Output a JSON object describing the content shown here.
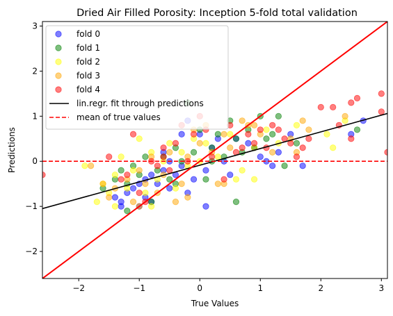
{
  "chart_data": {
    "type": "scatter",
    "title": "Dried Air Filled Porosity: Inception 5-fold total validation",
    "xlabel": "True Values",
    "ylabel": "Predictions",
    "xlim": [
      -2.6,
      3.1
    ],
    "ylim": [
      -2.6,
      3.1
    ],
    "xticks": [
      -2,
      -1,
      0,
      1,
      2,
      3
    ],
    "yticks": [
      -2,
      -1,
      0,
      1,
      2,
      3
    ],
    "xtick_labels": [
      "−2",
      "−1",
      "0",
      "1",
      "2",
      "3"
    ],
    "ytick_labels": [
      "−2",
      "−1",
      "0",
      "1",
      "2",
      "3"
    ],
    "grid": false,
    "legend_position": "top-left",
    "series": [
      {
        "name": "fold 0",
        "color": "#0000ff",
        "points": [
          [
            -1.3,
            -1.0
          ],
          [
            -1.3,
            -0.9
          ],
          [
            -1.2,
            -0.7
          ],
          [
            -1.1,
            -0.6
          ],
          [
            -1.0,
            -0.5
          ],
          [
            -1.0,
            -1.0
          ],
          [
            -0.9,
            -0.8
          ],
          [
            -0.9,
            -0.4
          ],
          [
            -0.8,
            -0.3
          ],
          [
            -0.7,
            -0.5
          ],
          [
            -0.6,
            -0.2
          ],
          [
            -0.6,
            0.2
          ],
          [
            -0.5,
            -0.6
          ],
          [
            -0.5,
            0.0
          ],
          [
            -0.4,
            -0.3
          ],
          [
            -0.3,
            -0.1
          ],
          [
            -0.3,
            0.6
          ],
          [
            -0.2,
            0.9
          ],
          [
            -0.1,
            -0.4
          ],
          [
            0.0,
            0.6
          ],
          [
            0.1,
            -0.2
          ],
          [
            0.2,
            0.3
          ],
          [
            0.3,
            0.5
          ],
          [
            0.5,
            -0.3
          ],
          [
            0.6,
            0.5
          ],
          [
            0.8,
            0.4
          ],
          [
            1.0,
            0.1
          ],
          [
            1.2,
            -0.1
          ],
          [
            1.3,
            0.2
          ],
          [
            1.5,
            0.6
          ],
          [
            1.7,
            -0.1
          ],
          [
            2.5,
            0.6
          ],
          [
            2.7,
            0.9
          ],
          [
            -1.4,
            -0.8
          ],
          [
            -0.8,
            -0.9
          ],
          [
            -0.2,
            -0.7
          ],
          [
            0.1,
            -1.0
          ],
          [
            0.4,
            0.0
          ],
          [
            0.9,
            0.3
          ],
          [
            1.1,
            0.0
          ]
        ]
      },
      {
        "name": "fold 1",
        "color": "#008000",
        "points": [
          [
            -1.6,
            -0.6
          ],
          [
            -1.4,
            -0.4
          ],
          [
            -1.3,
            -0.2
          ],
          [
            -1.2,
            -0.5
          ],
          [
            -1.1,
            -0.1
          ],
          [
            -1.0,
            -0.3
          ],
          [
            -0.9,
            0.1
          ],
          [
            -0.8,
            -0.9
          ],
          [
            -0.7,
            -0.2
          ],
          [
            -0.6,
            0.1
          ],
          [
            -0.5,
            -0.4
          ],
          [
            -0.4,
            0.3
          ],
          [
            -0.3,
            0.0
          ],
          [
            -0.2,
            1.3
          ],
          [
            -0.1,
            0.2
          ],
          [
            0.0,
            0.7
          ],
          [
            0.1,
            -0.4
          ],
          [
            0.2,
            0.3
          ],
          [
            0.3,
            0.6
          ],
          [
            0.4,
            0.1
          ],
          [
            0.5,
            0.9
          ],
          [
            0.6,
            0.5
          ],
          [
            0.7,
            0.2
          ],
          [
            0.8,
            0.7
          ],
          [
            0.9,
            0.3
          ],
          [
            1.0,
            1.0
          ],
          [
            1.1,
            0.5
          ],
          [
            1.3,
            1.0
          ],
          [
            1.4,
            -0.1
          ],
          [
            1.6,
            0.4
          ],
          [
            2.6,
            0.7
          ],
          [
            0.6,
            -0.9
          ],
          [
            -1.2,
            -1.1
          ],
          [
            -0.4,
            -0.5
          ],
          [
            0.2,
            0.0
          ],
          [
            1.2,
            0.6
          ]
        ]
      },
      {
        "name": "fold 2",
        "color": "#ffff00",
        "points": [
          [
            -1.9,
            -0.1
          ],
          [
            -1.7,
            -0.9
          ],
          [
            -1.6,
            -0.5
          ],
          [
            -1.5,
            -0.7
          ],
          [
            -1.4,
            -0.3
          ],
          [
            -1.3,
            0.1
          ],
          [
            -1.2,
            -0.6
          ],
          [
            -1.1,
            -0.2
          ],
          [
            -1.0,
            0.5
          ],
          [
            -0.9,
            -0.7
          ],
          [
            -0.8,
            0.2
          ],
          [
            -0.7,
            -0.4
          ],
          [
            -0.6,
            0.0
          ],
          [
            -0.5,
            0.4
          ],
          [
            -0.4,
            -0.6
          ],
          [
            -0.3,
            0.2
          ],
          [
            -0.2,
            -0.1
          ],
          [
            -0.1,
            0.5
          ],
          [
            0.0,
            0.0
          ],
          [
            0.1,
            0.4
          ],
          [
            0.3,
            0.1
          ],
          [
            0.5,
            0.6
          ],
          [
            0.7,
            -0.2
          ],
          [
            0.9,
            0.3
          ],
          [
            1.1,
            0.7
          ],
          [
            1.3,
            0.4
          ],
          [
            1.6,
            0.8
          ],
          [
            2.1,
            0.6
          ],
          [
            2.4,
            0.9
          ],
          [
            2.2,
            0.3
          ],
          [
            -1.4,
            -1.0
          ],
          [
            -0.8,
            -1.0
          ],
          [
            0.6,
            -0.4
          ],
          [
            0.9,
            -0.4
          ]
        ]
      },
      {
        "name": "fold 3",
        "color": "#ffa500",
        "points": [
          [
            -1.8,
            -0.1
          ],
          [
            -1.6,
            -0.5
          ],
          [
            -1.5,
            -0.8
          ],
          [
            -1.4,
            -0.6
          ],
          [
            -1.2,
            -0.4
          ],
          [
            -1.1,
            -0.9
          ],
          [
            -1.0,
            -0.2
          ],
          [
            -0.9,
            -0.5
          ],
          [
            -0.8,
            0.1
          ],
          [
            -0.7,
            -0.7
          ],
          [
            -0.6,
            -0.3
          ],
          [
            -0.5,
            0.2
          ],
          [
            -0.4,
            -0.9
          ],
          [
            -0.3,
            -0.5
          ],
          [
            -0.2,
            0.1
          ],
          [
            -0.1,
            0.7
          ],
          [
            0.0,
            0.4
          ],
          [
            0.1,
            0.8
          ],
          [
            0.2,
            0.2
          ],
          [
            0.3,
            -0.5
          ],
          [
            0.4,
            0.6
          ],
          [
            0.5,
            0.3
          ],
          [
            0.7,
            0.9
          ],
          [
            0.8,
            0.8
          ],
          [
            1.0,
            0.6
          ],
          [
            1.2,
            0.2
          ],
          [
            1.5,
            0.5
          ],
          [
            1.7,
            0.9
          ],
          [
            1.8,
            0.7
          ],
          [
            2.4,
            1.0
          ],
          [
            -0.2,
            -0.8
          ],
          [
            0.4,
            -0.5
          ],
          [
            -1.0,
            -1.0
          ],
          [
            0.9,
            0.8
          ],
          [
            1.6,
            0.2
          ]
        ]
      },
      {
        "name": "fold 4",
        "color": "#ff0000",
        "points": [
          [
            -2.6,
            -0.3
          ],
          [
            -1.5,
            0.1
          ],
          [
            -1.3,
            -0.4
          ],
          [
            -1.2,
            -0.3
          ],
          [
            -1.1,
            0.6
          ],
          [
            -1.0,
            -0.7
          ],
          [
            -0.9,
            -0.9
          ],
          [
            -0.8,
            0.0
          ],
          [
            -0.7,
            -0.1
          ],
          [
            -0.6,
            0.3
          ],
          [
            -0.5,
            -0.2
          ],
          [
            -0.4,
            0.4
          ],
          [
            -0.3,
            0.8
          ],
          [
            -0.2,
            0.0
          ],
          [
            -0.1,
            0.6
          ],
          [
            0.0,
            1.0
          ],
          [
            0.1,
            0.7
          ],
          [
            0.2,
            0.1
          ],
          [
            0.4,
            -0.4
          ],
          [
            0.6,
            0.2
          ],
          [
            0.7,
            0.3
          ],
          [
            0.8,
            0.6
          ],
          [
            0.9,
            0.4
          ],
          [
            1.0,
            0.7
          ],
          [
            1.1,
            0.3
          ],
          [
            1.2,
            0.8
          ],
          [
            1.3,
            0.7
          ],
          [
            1.4,
            0.5
          ],
          [
            1.5,
            0.4
          ],
          [
            1.6,
            0.1
          ],
          [
            1.7,
            0.3
          ],
          [
            1.8,
            0.5
          ],
          [
            2.0,
            1.2
          ],
          [
            2.2,
            1.2
          ],
          [
            2.3,
            0.8
          ],
          [
            2.5,
            0.5
          ],
          [
            2.5,
            1.3
          ],
          [
            2.6,
            1.4
          ],
          [
            3.0,
            1.5
          ],
          [
            3.0,
            1.1
          ],
          [
            3.1,
            0.2
          ],
          [
            -0.6,
            0.1
          ],
          [
            0.5,
            0.8
          ]
        ]
      }
    ],
    "lines": [
      {
        "name": "lin.regr. fit through predictions",
        "color": "#000000",
        "style": "solid",
        "x": [
          -2.6,
          3.1
        ],
        "y": [
          -1.05,
          1.06
        ]
      },
      {
        "name": "mean of true values",
        "color": "#ff0000",
        "style": "dashed",
        "x": [
          -2.6,
          3.1
        ],
        "y": [
          0.0,
          0.0
        ]
      },
      {
        "name": "",
        "color": "#ff0000",
        "style": "solid",
        "x": [
          -2.6,
          3.1
        ],
        "y": [
          -2.6,
          3.1
        ]
      }
    ]
  }
}
